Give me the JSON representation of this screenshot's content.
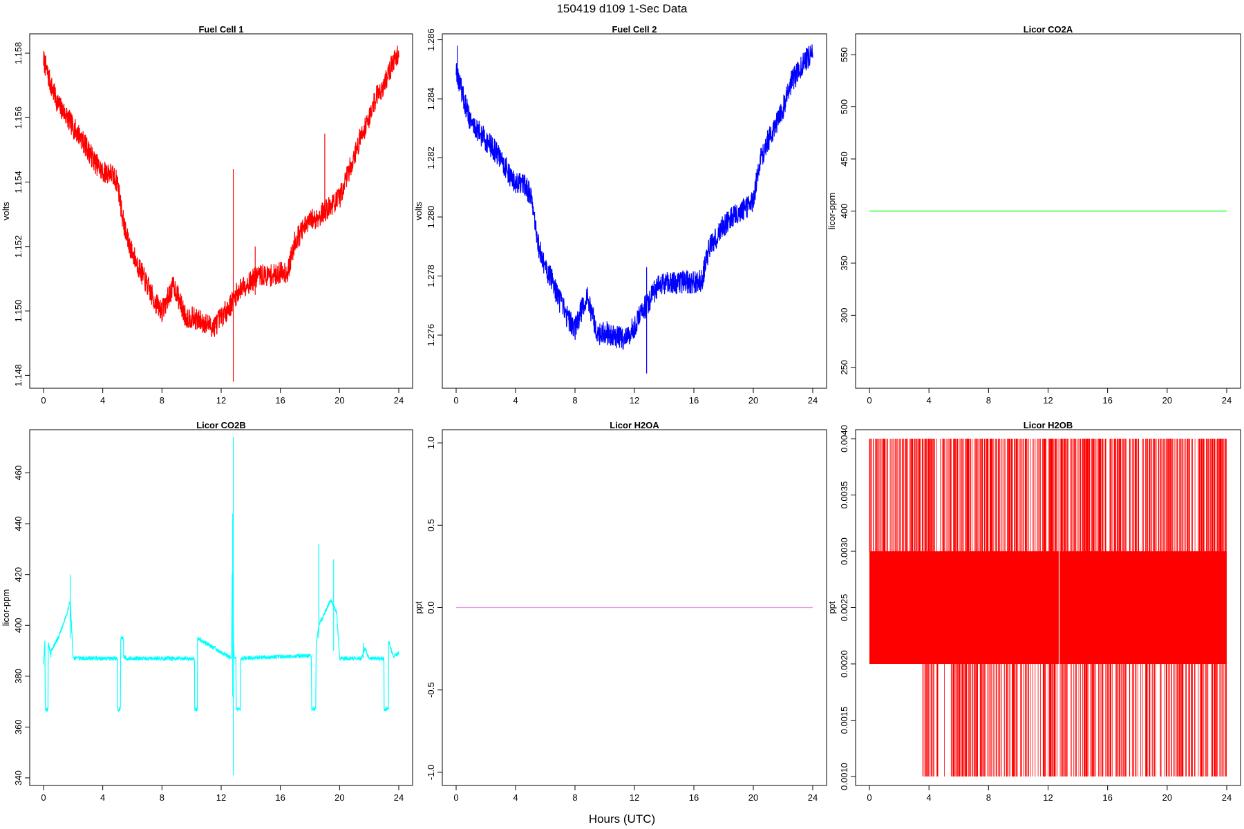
{
  "figure": {
    "title": "150419   d109   1-Sec Data",
    "xlabel": "Hours (UTC)"
  },
  "chart_data": [
    {
      "type": "line",
      "title": "Fuel Cell 1",
      "ylabel": "volts",
      "color": "#ff0000",
      "xlim": [
        0,
        24
      ],
      "ylim": [
        1.1476,
        1.1586
      ],
      "xticks": [
        "0",
        "4",
        "8",
        "12",
        "16",
        "20",
        "24"
      ],
      "yticks": [
        "1.148",
        "1.150",
        "1.152",
        "1.154",
        "1.156",
        "1.158"
      ],
      "x": [
        0,
        0.5,
        1,
        1.5,
        2,
        2.5,
        3,
        3.5,
        4,
        4.5,
        5,
        5.3,
        5.6,
        6,
        6.5,
        7,
        7.5,
        8,
        8.4,
        8.8,
        9.2,
        9.6,
        10,
        10.5,
        11,
        11.5,
        12,
        12.5,
        12.8,
        13,
        13.5,
        14,
        14.5,
        15,
        15.5,
        16,
        16.5,
        17,
        17.5,
        18,
        18.5,
        19,
        19.5,
        20,
        20.5,
        21,
        21.5,
        22,
        22.5,
        23,
        23.5,
        24
      ],
      "y": [
        1.1578,
        1.157,
        1.1564,
        1.1561,
        1.1557,
        1.1554,
        1.155,
        1.1546,
        1.1543,
        1.1543,
        1.154,
        1.153,
        1.1523,
        1.1518,
        1.1513,
        1.1508,
        1.1503,
        1.15,
        1.1504,
        1.1508,
        1.1503,
        1.1498,
        1.1498,
        1.1497,
        1.1496,
        1.1495,
        1.1498,
        1.1501,
        1.1503,
        1.1505,
        1.1508,
        1.1509,
        1.1511,
        1.1511,
        1.1511,
        1.1512,
        1.1512,
        1.1522,
        1.1525,
        1.1528,
        1.1529,
        1.1531,
        1.1533,
        1.1535,
        1.1542,
        1.1548,
        1.1555,
        1.156,
        1.1567,
        1.157,
        1.1576,
        1.158
      ],
      "noise": 0.00035,
      "spikes": [
        {
          "x": 12.82,
          "y_min": 1.1478,
          "y_max": 1.1544
        },
        {
          "x": 19.0,
          "y_min": 1.153,
          "y_max": 1.1555
        },
        {
          "x": 14.3,
          "y_min": 1.1505,
          "y_max": 1.152
        }
      ]
    },
    {
      "type": "line",
      "title": "Fuel Cell 2",
      "ylabel": "volts",
      "color": "#0000ff",
      "xlim": [
        0,
        24
      ],
      "ylim": [
        1.2742,
        1.2862
      ],
      "xticks": [
        "0",
        "4",
        "8",
        "12",
        "16",
        "20",
        "24"
      ],
      "yticks": [
        "1.276",
        "1.278",
        "1.280",
        "1.282",
        "1.284",
        "1.286"
      ],
      "x": [
        0,
        0.5,
        1,
        1.5,
        2,
        2.5,
        3,
        3.5,
        4,
        4.5,
        5,
        5.3,
        5.6,
        6,
        6.5,
        7,
        7.5,
        8,
        8.4,
        8.8,
        9.2,
        9.6,
        10,
        10.5,
        11,
        11.5,
        12,
        12.5,
        12.8,
        13,
        13.5,
        14,
        14.5,
        15,
        15.5,
        16,
        16.5,
        17,
        17.5,
        18,
        18.5,
        19,
        19.5,
        20,
        20.5,
        21,
        21.5,
        22,
        22.5,
        23,
        23.5,
        24
      ],
      "y": [
        1.285,
        1.284,
        1.2832,
        1.2829,
        1.2826,
        1.2823,
        1.282,
        1.2815,
        1.2811,
        1.2811,
        1.2808,
        1.2797,
        1.2789,
        1.2783,
        1.2778,
        1.2771,
        1.2766,
        1.2762,
        1.2768,
        1.2773,
        1.2766,
        1.276,
        1.2761,
        1.276,
        1.2759,
        1.2759,
        1.2763,
        1.2768,
        1.277,
        1.2772,
        1.2776,
        1.2777,
        1.2778,
        1.2778,
        1.2778,
        1.2778,
        1.2778,
        1.2789,
        1.2793,
        1.2797,
        1.28,
        1.2802,
        1.2803,
        1.2806,
        1.282,
        1.2826,
        1.2831,
        1.2837,
        1.2845,
        1.2849,
        1.2853,
        1.2856
      ],
      "noise": 0.0004,
      "spikes": [
        {
          "x": 12.82,
          "y_min": 1.2747,
          "y_max": 1.2783
        },
        {
          "x": 0.08,
          "y_min": 1.2846,
          "y_max": 1.2858
        }
      ]
    },
    {
      "type": "line",
      "title": "Licor CO2A",
      "ylabel": "licor-ppm",
      "color": "#00ff00",
      "xlim": [
        0,
        24
      ],
      "ylim": [
        230,
        570
      ],
      "xticks": [
        "0",
        "4",
        "8",
        "12",
        "16",
        "20",
        "24"
      ],
      "yticks": [
        "250",
        "300",
        "350",
        "400",
        "450",
        "500",
        "550"
      ],
      "x": [
        0,
        24
      ],
      "y": [
        400,
        400
      ],
      "noise": 0,
      "spikes": []
    },
    {
      "type": "line",
      "title": "Licor CO2B",
      "ylabel": "licor-ppm",
      "color": "#00ffff",
      "xlim": [
        0,
        24
      ],
      "ylim": [
        337,
        477
      ],
      "xticks": [
        "0",
        "4",
        "8",
        "12",
        "16",
        "20",
        "24"
      ],
      "yticks": [
        "340",
        "360",
        "380",
        "400",
        "420",
        "440",
        "460"
      ],
      "x": [
        0,
        0.1,
        0.11,
        0.3,
        0.31,
        0.5,
        0.51,
        1.0,
        1.3,
        1.6,
        1.8,
        2.0,
        2.01,
        5.0,
        5.01,
        5.2,
        5.21,
        5.4,
        5.41,
        5.6,
        5.61,
        10.2,
        10.21,
        10.4,
        10.41,
        12.7,
        12.75,
        12.85,
        12.9,
        13.0,
        13.01,
        13.3,
        13.31,
        17.5,
        18.1,
        18.11,
        18.4,
        18.41,
        18.6,
        19.0,
        19.4,
        19.8,
        20.0,
        20.01,
        21.5,
        21.7,
        22.0,
        23.0,
        23.01,
        23.3,
        23.31,
        23.6,
        24
      ],
      "y": [
        385,
        395,
        367,
        367,
        393,
        388,
        390,
        395,
        400,
        405,
        410,
        387,
        387,
        387,
        367,
        367,
        395,
        395,
        388,
        387,
        387,
        387,
        367,
        367,
        395,
        387,
        420,
        390,
        387,
        387,
        367,
        367,
        387,
        388,
        388,
        367,
        367,
        392,
        400,
        405,
        410,
        405,
        388,
        387,
        387,
        391,
        387,
        387,
        367,
        367,
        394,
        388,
        389
      ],
      "noise": 0.8,
      "spikes": [
        {
          "x": 12.82,
          "y_min": 341,
          "y_max": 474
        },
        {
          "x": 12.78,
          "y_min": 372,
          "y_max": 444
        },
        {
          "x": 1.8,
          "y_min": 395,
          "y_max": 420
        },
        {
          "x": 18.6,
          "y_min": 395,
          "y_max": 432
        },
        {
          "x": 19.6,
          "y_min": 390,
          "y_max": 426
        },
        {
          "x": 21.6,
          "y_min": 387,
          "y_max": 393
        }
      ]
    },
    {
      "type": "line",
      "title": "Licor H2OA",
      "ylabel": "ppt",
      "color": "#dd99dd",
      "xlim": [
        0,
        24
      ],
      "ylim": [
        -1.08,
        1.08
      ],
      "xticks": [
        "0",
        "4",
        "8",
        "12",
        "16",
        "20",
        "24"
      ],
      "yticks": [
        "-1.0",
        "-0.5",
        "0.0",
        "0.5",
        "1.0"
      ],
      "x": [
        0,
        24
      ],
      "y": [
        0,
        0
      ],
      "noise": 0,
      "spikes": []
    },
    {
      "type": "line",
      "title": "Licor H2OB",
      "ylabel": "ppt",
      "color": "#ff0000",
      "xlim": [
        0,
        24
      ],
      "ylim": [
        0.00092,
        0.00408
      ],
      "xticks": [
        "0",
        "4",
        "8",
        "12",
        "16",
        "20",
        "24"
      ],
      "yticks": [
        "0.0010",
        "0.0015",
        "0.0020",
        "0.0025",
        "0.0030",
        "0.0035",
        "0.0040"
      ],
      "band": {
        "y_min": 0.002,
        "y_max": 0.003
      },
      "x": [
        0,
        24
      ],
      "y": [
        0.002,
        0.003
      ],
      "noise": 0,
      "spikes": []
    }
  ]
}
